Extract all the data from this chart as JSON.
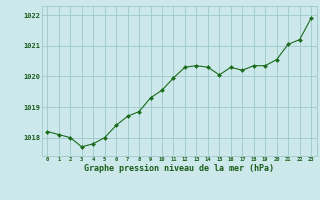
{
  "x": [
    0,
    1,
    2,
    3,
    4,
    5,
    6,
    7,
    8,
    9,
    10,
    11,
    12,
    13,
    14,
    15,
    16,
    17,
    18,
    19,
    20,
    21,
    22,
    23
  ],
  "y": [
    1018.2,
    1018.1,
    1018.0,
    1017.7,
    1017.8,
    1018.0,
    1018.4,
    1018.7,
    1018.85,
    1019.3,
    1019.55,
    1019.95,
    1020.3,
    1020.35,
    1020.3,
    1020.05,
    1020.3,
    1020.2,
    1020.35,
    1020.35,
    1020.55,
    1021.05,
    1021.2,
    1021.9
  ],
  "line_color": "#1a6b1a",
  "marker_color": "#1a6b1a",
  "bg_color": "#cce8ea",
  "grid_color": "#9dc8cc",
  "text_color": "#1a5c1a",
  "xlabel": "Graphe pression niveau de la mer (hPa)",
  "ylim": [
    1017.4,
    1022.3
  ],
  "yticks": [
    1018,
    1019,
    1020,
    1021,
    1022
  ],
  "xticks": [
    0,
    1,
    2,
    3,
    4,
    5,
    6,
    7,
    8,
    9,
    10,
    11,
    12,
    13,
    14,
    15,
    16,
    17,
    18,
    19,
    20,
    21,
    22,
    23
  ],
  "figsize": [
    3.2,
    2.0
  ],
  "dpi": 100
}
